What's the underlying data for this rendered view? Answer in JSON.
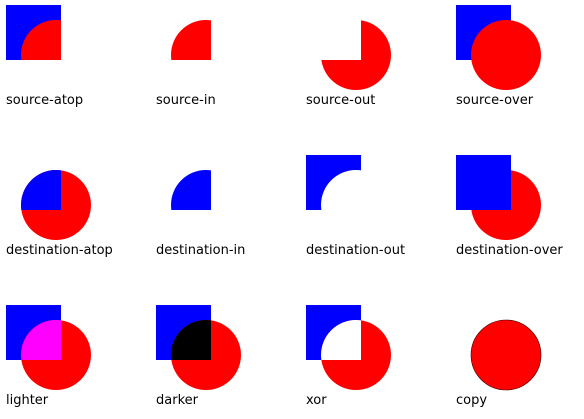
{
  "colors": {
    "square": "#0000ff",
    "circle": "#ff0000",
    "lighter_overlap": "#ff00ff",
    "darker_overlap": "#000000",
    "background": "#ffffff"
  },
  "modes": [
    {
      "label": "source-atop",
      "icon": "source-atop-composite-icon"
    },
    {
      "label": "source-in",
      "icon": "source-in-composite-icon"
    },
    {
      "label": "source-out",
      "icon": "source-out-composite-icon"
    },
    {
      "label": "source-over",
      "icon": "source-over-composite-icon"
    },
    {
      "label": "destination-atop",
      "icon": "destination-atop-composite-icon"
    },
    {
      "label": "destination-in",
      "icon": "destination-in-composite-icon"
    },
    {
      "label": "destination-out",
      "icon": "destination-out-composite-icon"
    },
    {
      "label": "destination-over",
      "icon": "destination-over-composite-icon"
    },
    {
      "label": "lighter",
      "icon": "lighter-composite-icon"
    },
    {
      "label": "darker",
      "icon": "darker-composite-icon"
    },
    {
      "label": "xor",
      "icon": "xor-composite-icon"
    },
    {
      "label": "copy",
      "icon": "copy-composite-icon"
    }
  ]
}
